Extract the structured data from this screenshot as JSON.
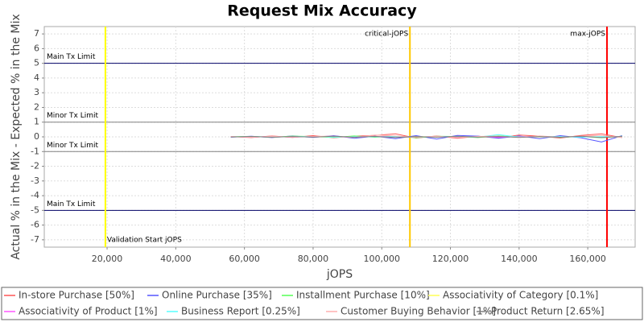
{
  "chart_data": {
    "type": "line",
    "title": "Request Mix Accuracy",
    "xlabel": "jOPS",
    "ylabel": "Actual % in the Mix - Expected % in the Mix",
    "xlim": [
      1700,
      173800
    ],
    "ylim": [
      -7.5,
      7.5
    ],
    "xticks": [
      {
        "value": 20000,
        "label": "20,000"
      },
      {
        "value": 40000,
        "label": "40,000"
      },
      {
        "value": 60000,
        "label": "60,000"
      },
      {
        "value": 80000,
        "label": "80,000"
      },
      {
        "value": 100000,
        "label": "100,000"
      },
      {
        "value": 120000,
        "label": "120,000"
      },
      {
        "value": 140000,
        "label": "140,000"
      },
      {
        "value": 160000,
        "label": "160,000"
      }
    ],
    "yticks": [
      -7,
      -6,
      -5,
      -4,
      -3,
      -2,
      -1,
      0,
      1,
      2,
      3,
      4,
      5,
      6,
      7
    ],
    "grid": true,
    "hlines": [
      {
        "label": "Main Tx Limit",
        "value": 5,
        "color": "#000066"
      },
      {
        "label": "Minor Tx Limit",
        "value": 1,
        "color": "#808080"
      },
      {
        "label": "Minor Tx Limit",
        "value": -1,
        "color": "#808080"
      },
      {
        "label": "Main Tx Limit",
        "value": -5,
        "color": "#000066"
      }
    ],
    "vlines": [
      {
        "label": "Validation Start jOPS",
        "value": 19500,
        "color": "#ffff00"
      },
      {
        "label": "critical-jOPS",
        "value": 108200,
        "color": "#ffc800"
      },
      {
        "label": "max-jOPS",
        "value": 165600,
        "color": "#ff0000"
      }
    ],
    "x": [
      56000,
      62000,
      68000,
      74000,
      80000,
      86000,
      92000,
      98000,
      104000,
      110000,
      116000,
      122000,
      128000,
      134000,
      140000,
      146000,
      152000,
      158000,
      164000,
      170000
    ],
    "series": [
      {
        "name": "In-store Purchase [50%]",
        "color": "#ff5555",
        "values": [
          0.02,
          -0.05,
          0.06,
          -0.04,
          0.08,
          -0.06,
          0.05,
          0.1,
          0.2,
          -0.08,
          0.06,
          -0.1,
          0.04,
          -0.06,
          0.12,
          0.05,
          -0.08,
          0.1,
          0.2,
          -0.05
        ]
      },
      {
        "name": "Online Purchase [35%]",
        "color": "#5555ff",
        "values": [
          -0.02,
          0.04,
          -0.05,
          0.06,
          -0.04,
          0.08,
          -0.1,
          0.04,
          -0.12,
          0.08,
          -0.15,
          0.1,
          0.05,
          -0.1,
          0.06,
          -0.12,
          0.08,
          -0.06,
          -0.35,
          0.08
        ]
      },
      {
        "name": "Installment Purchase [10%]",
        "color": "#55ff55",
        "values": [
          0.01,
          0.03,
          -0.02,
          0.05,
          0.02,
          -0.04,
          0.06,
          -0.03,
          0.05,
          -0.06,
          0.04,
          0.02,
          -0.05,
          0.07,
          -0.03,
          0.05,
          -0.04,
          0.03,
          -0.06,
          0.04
        ]
      },
      {
        "name": "Associativity of Category [0.1%]",
        "color": "#ffff55",
        "values": [
          0,
          0.01,
          -0.01,
          0.01,
          0,
          -0.01,
          0.01,
          0,
          -0.01,
          0.01,
          0,
          0.01,
          -0.01,
          0,
          0.01,
          -0.01,
          0,
          0.01,
          0,
          -0.01
        ]
      },
      {
        "name": "Associativity of Product [1%]",
        "color": "#ff55ff",
        "values": [
          0.01,
          -0.02,
          0.03,
          -0.02,
          0.02,
          0.01,
          -0.03,
          0.02,
          0.01,
          -0.02,
          0.03,
          -0.01,
          0.02,
          -0.03,
          0.01,
          0.02,
          -0.02,
          0.03,
          -0.01,
          0.02
        ]
      },
      {
        "name": "Business Report [0.25%]",
        "color": "#55ffff",
        "values": [
          0,
          0.02,
          -0.01,
          0.01,
          0.02,
          -0.02,
          0.01,
          0,
          0.02,
          -0.01,
          0.01,
          0.02,
          -0.02,
          0.15,
          -0.01,
          0.02,
          0.01,
          -0.02,
          0.01,
          0
        ]
      },
      {
        "name": "Customer Buying Behavior [1%]",
        "color": "#ffafaf",
        "values": [
          0.02,
          -0.03,
          0.04,
          -0.02,
          0.03,
          0.05,
          -0.04,
          0.12,
          0.06,
          -0.03,
          0.04,
          -0.05,
          0.03,
          0.05,
          -0.04,
          0.06,
          -0.03,
          0.05,
          0.1,
          -0.04
        ]
      },
      {
        "name": "Product Return [2.65%]",
        "color": "#808080",
        "values": [
          -0.01,
          0.03,
          -0.03,
          0.02,
          -0.02,
          0.04,
          -0.02,
          0.03,
          -0.04,
          0.02,
          -0.03,
          0.04,
          -0.02,
          0.03,
          -0.04,
          0.02,
          -0.03,
          0.04,
          -0.05,
          0.03
        ]
      }
    ]
  }
}
